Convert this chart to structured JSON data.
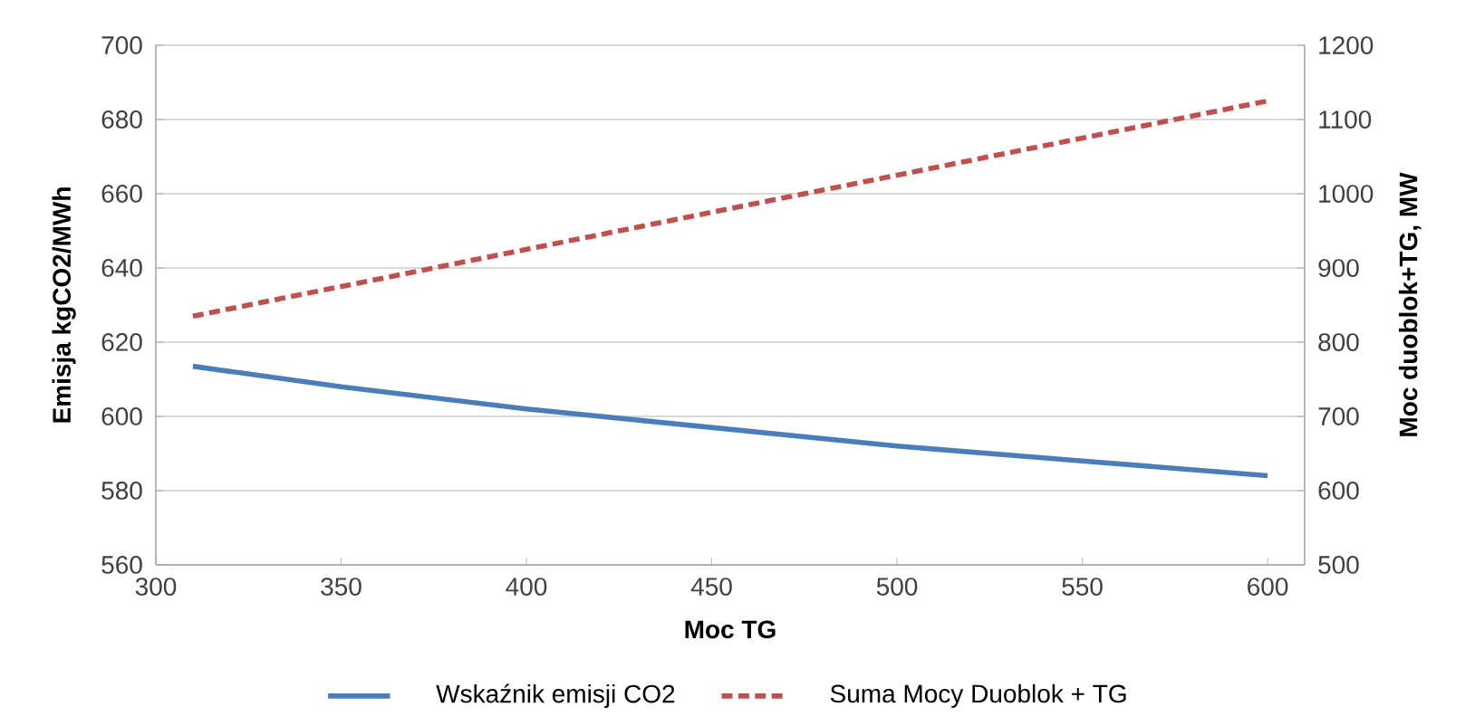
{
  "chart_data": {
    "type": "line",
    "xlabel": "Moc TG",
    "ylabel": "Emisja kgCO2/MWh",
    "y2label": "Moc duoblok+TG, MW",
    "x": [
      310,
      350,
      400,
      450,
      500,
      550,
      600
    ],
    "series": [
      {
        "name": "Wskaźnik emisji CO2",
        "color": "#4a7ebb",
        "line_style": "solid",
        "values": [
          613.5,
          608,
          602,
          597,
          592,
          588,
          584
        ]
      },
      {
        "name": "Suma Mocy Duoblok + TG",
        "color": "#c0504d",
        "line_style": "dashed",
        "axis": "y2",
        "values": [
          835,
          875,
          925,
          975,
          1025,
          1075,
          1125
        ]
      }
    ],
    "xlim": [
      300,
      610
    ],
    "xticks": [
      300,
      350,
      400,
      450,
      500,
      550,
      600
    ],
    "ylim": [
      560,
      700
    ],
    "yticks": [
      560,
      580,
      600,
      620,
      640,
      660,
      680,
      700
    ],
    "y2lim": [
      500,
      1200
    ],
    "y2ticks": [
      500,
      600,
      700,
      800,
      900,
      1000,
      1100,
      1200
    ],
    "grid": "y",
    "legend": "bottom",
    "marker": "none"
  }
}
